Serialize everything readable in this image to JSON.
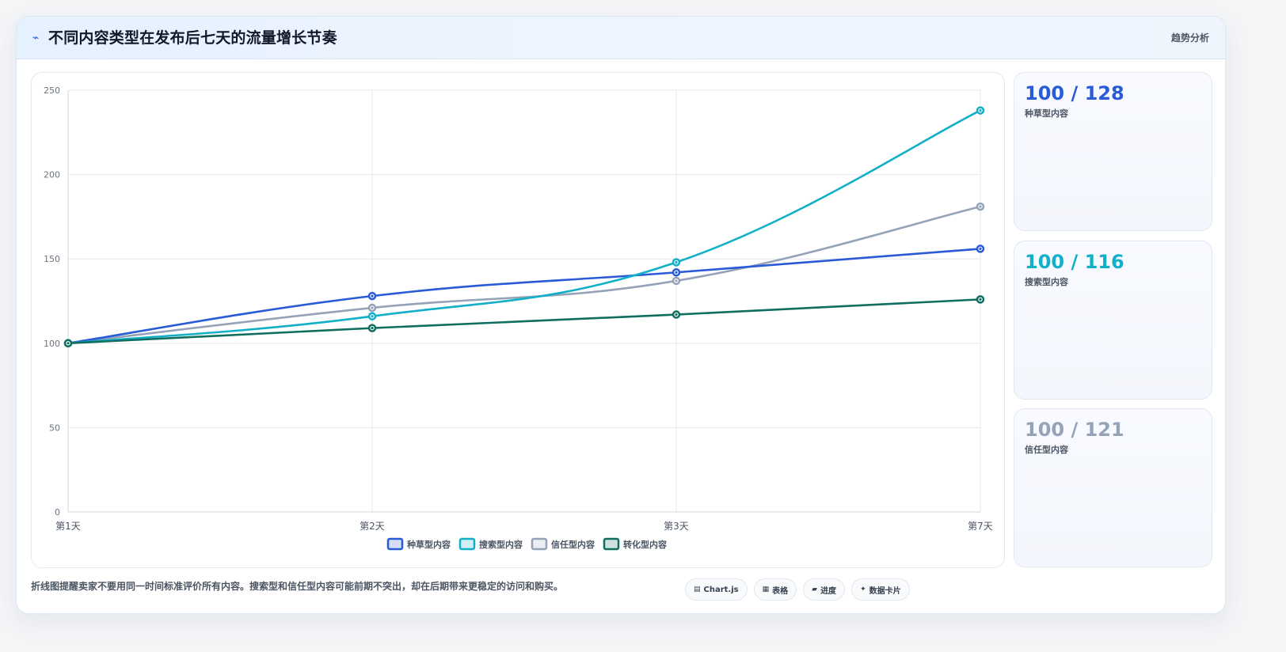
{
  "header": {
    "icon": "trend-line-icon",
    "title": "不同内容类型在发布后七天的流量增长节奏",
    "tag": "趋势分析"
  },
  "chart_data": {
    "type": "line",
    "categories": [
      "第1天",
      "第2天",
      "第3天",
      "第7天"
    ],
    "ylim": [
      0,
      250
    ],
    "yticks": [
      0,
      50,
      100,
      150,
      200,
      250
    ],
    "grid": true,
    "legend": "bottom",
    "series": [
      {
        "name": "种草型内容",
        "color": "#2a5bd7",
        "values": [
          100,
          128,
          142,
          156
        ]
      },
      {
        "name": "搜索型内容",
        "color": "#12b0c8",
        "values": [
          100,
          116,
          148,
          238
        ]
      },
      {
        "name": "信任型内容",
        "color": "#94a3b8",
        "values": [
          100,
          121,
          137,
          181
        ]
      },
      {
        "name": "转化型内容",
        "color": "#0f6e5f",
        "values": [
          100,
          109,
          117,
          126
        ]
      }
    ]
  },
  "stats": [
    {
      "value": "100 / 128",
      "label": "种草型内容",
      "color": "#2a5bd7"
    },
    {
      "value": "100 / 116",
      "label": "搜索型内容",
      "color": "#12b0c8"
    },
    {
      "value": "100 / 121",
      "label": "信任型内容",
      "color": "#94a3b8"
    }
  ],
  "footer": {
    "note": "折线图提醒卖家不要用同一时间标准评价所有内容。搜索型和信任型内容可能前期不突出，却在后期带来更稳定的访问和购买。",
    "chips": [
      {
        "icon": "chart-icon",
        "glyph": "▤",
        "label": "Chart.js"
      },
      {
        "icon": "table-icon",
        "glyph": "▦",
        "label": "表格"
      },
      {
        "icon": "progress-icon",
        "glyph": "▰",
        "label": "进度"
      },
      {
        "icon": "sparkle-icon",
        "glyph": "✦",
        "label": "数据卡片"
      }
    ]
  }
}
